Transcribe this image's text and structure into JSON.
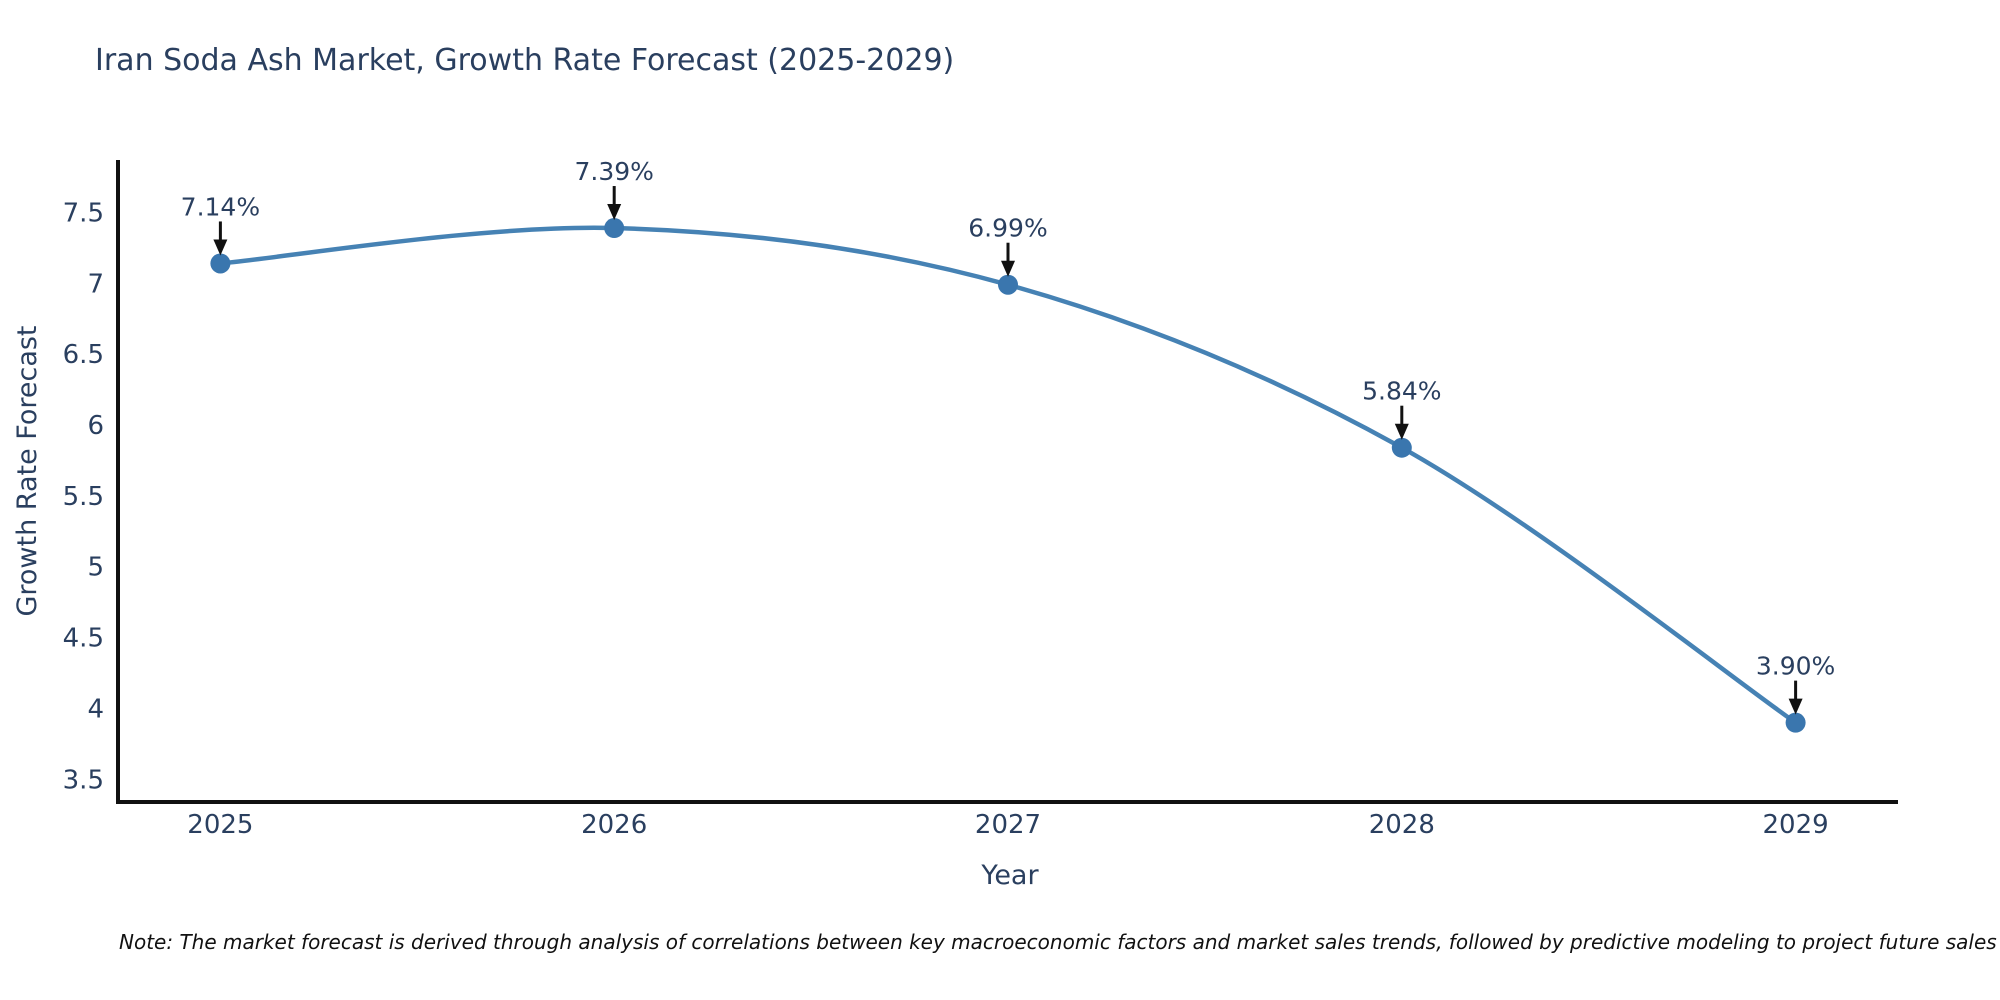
{
  "chart": {
    "title": "Iran Soda Ash Market, Growth Rate Forecast (2025-2029)",
    "note": "Note: The market forecast is derived through analysis of correlations between key macroeconomic factors and market sales trends, followed by predictive modeling to project future sales",
    "chart_data": {
      "type": "line",
      "x": [
        2025,
        2026,
        2027,
        2028,
        2029
      ],
      "y": [
        7.14,
        7.39,
        6.99,
        5.84,
        3.9
      ],
      "point_labels": [
        "7.14%",
        "7.39%",
        "6.99%",
        "5.84%",
        "3.90%"
      ],
      "title": "Iran Soda Ash Market, Growth Rate Forecast (2025-2029)",
      "xlabel": "Year",
      "ylabel": "Growth Rate Forecast",
      "xticks": [
        2025,
        2026,
        2027,
        2028,
        2029
      ],
      "yticks": [
        3.5,
        4,
        4.5,
        5,
        5.5,
        6,
        6.5,
        7,
        7.5
      ],
      "xlim": [
        2024.74,
        2029.26
      ],
      "ylim": [
        3.34,
        7.87
      ],
      "grid": false,
      "legend": false,
      "smooth": true,
      "marker_size": 10,
      "line_width": 4.5,
      "colors": {
        "line": "#4682b4",
        "marker": "#3a76ae",
        "axis_text": "#2a3f5f",
        "annotation_text": "#2a3f5f",
        "spine": "#111111",
        "arrow": "#111111"
      }
    }
  }
}
